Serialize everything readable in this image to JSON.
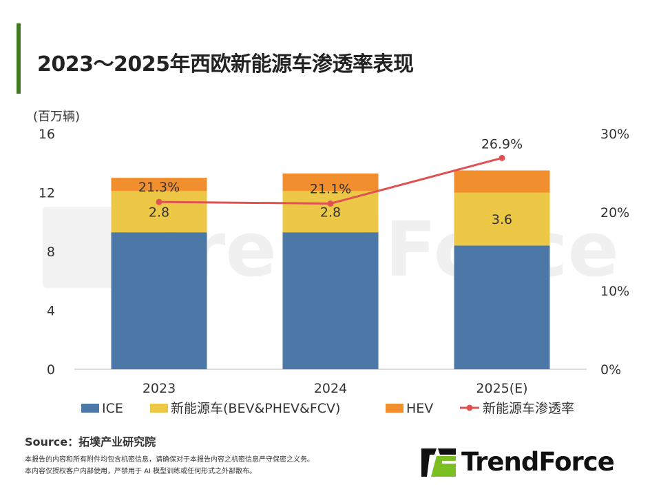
{
  "title": "2023～2025年西欧新能源车渗透率表现",
  "source": "Source：拓墣产业研究院",
  "disclaimer": [
    "本报告的内容和所有附件均包含机密信息，请确保对于本报告内容之机密信息严守保密之义务。",
    "本内容仅授权客户内部使用，严禁用于 AI 模型训练或任何形式之外部散布。"
  ],
  "logo": {
    "text": "TrendForce",
    "watermark": "TrendForce"
  },
  "colors": {
    "ice": "#4c78a8",
    "nev": "#ecc846",
    "hev": "#f18f2e",
    "rate": "#e05252",
    "accent": "#3d7a1e"
  },
  "chart_data": {
    "type": "bar",
    "stacked": true,
    "categories": [
      "2023",
      "2024",
      "2025(E)"
    ],
    "ylabel": "(百万辆)",
    "ylim": [
      0,
      16
    ],
    "yticks": [
      "0",
      "4",
      "8",
      "12",
      "16"
    ],
    "y2lim": [
      0,
      30
    ],
    "y2ticks": [
      "0%",
      "10%",
      "20%",
      "30%"
    ],
    "series": [
      {
        "name": "ICE",
        "values": [
          9.3,
          9.3,
          8.4
        ]
      },
      {
        "name": "新能源车(BEV&PHEV&FCV)",
        "values": [
          2.8,
          2.8,
          3.6
        ],
        "labels": [
          "2.8",
          "2.8",
          "3.6"
        ]
      },
      {
        "name": "HEV",
        "values": [
          0.9,
          1.2,
          1.5
        ]
      },
      {
        "name": "新能源车渗透率",
        "type": "line",
        "axis": "right",
        "values": [
          21.3,
          21.1,
          26.9
        ],
        "labels": [
          "21.3%",
          "21.1%",
          "26.9%"
        ]
      }
    ],
    "legend": "bottom",
    "grid": false
  }
}
